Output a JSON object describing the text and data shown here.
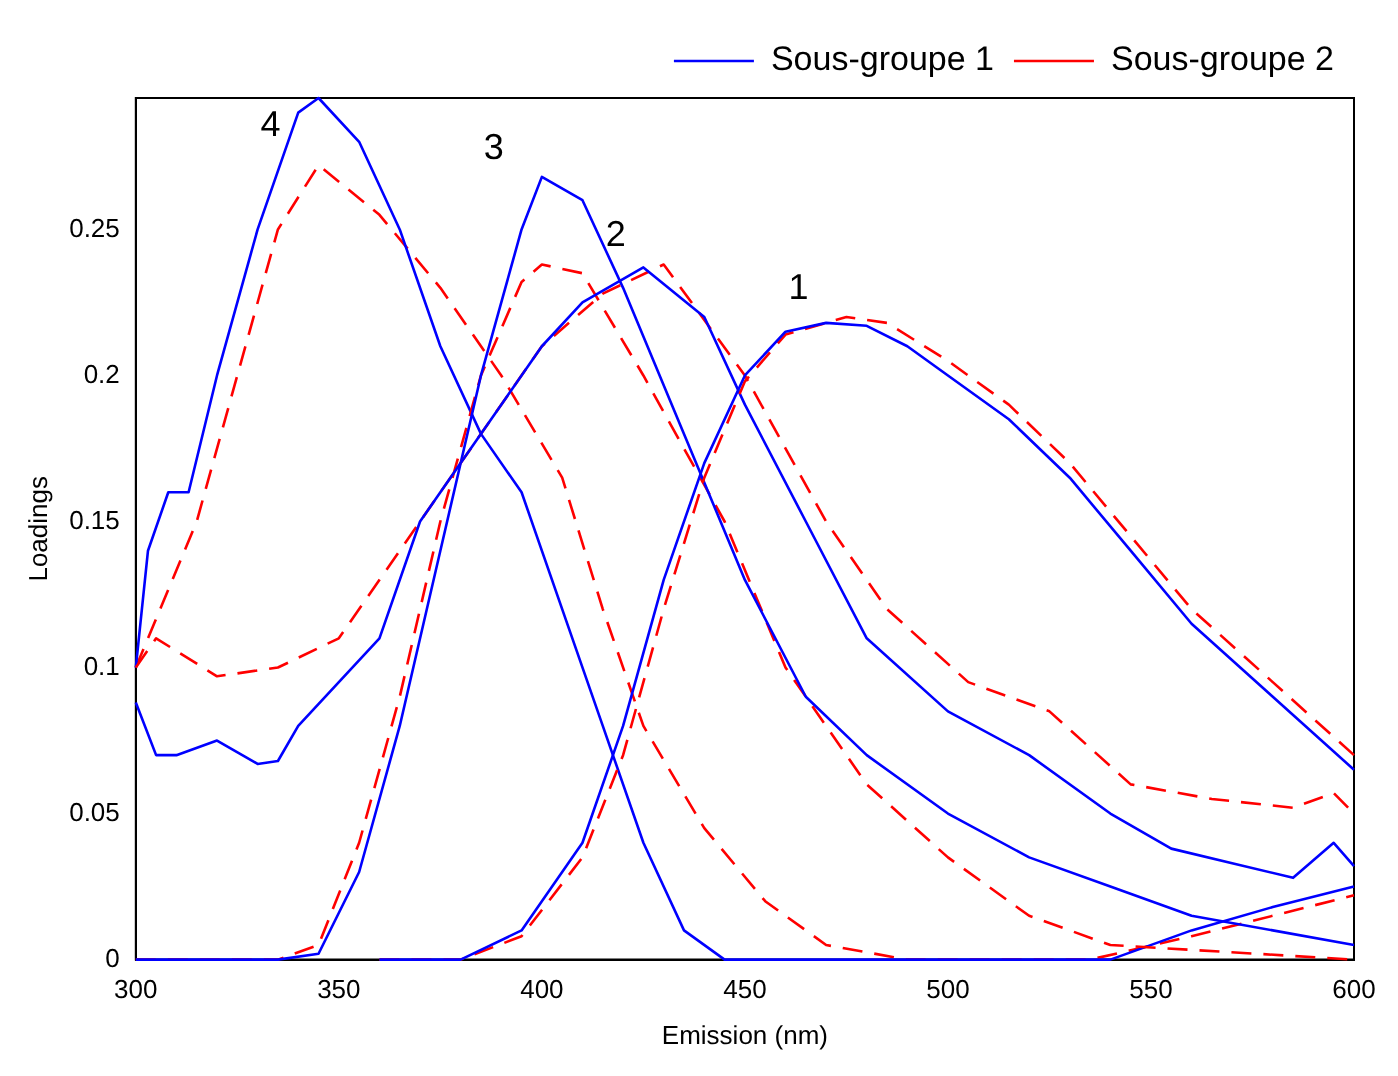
{
  "chart_data": {
    "type": "line",
    "xlabel": "Emission (nm)",
    "ylabel": "Loadings",
    "xlim": [
      300,
      600
    ],
    "xticks": [
      300,
      350,
      400,
      450,
      500,
      550,
      600
    ],
    "ylim": [
      0,
      0.295
    ],
    "yticks": [
      0,
      0.05,
      0.1,
      0.15,
      0.2,
      0.25
    ],
    "grid": false,
    "legend": "top right",
    "annotations": [
      {
        "text": "4",
        "x": 345,
        "y": 0.295
      },
      {
        "text": "3",
        "x": 400,
        "y": 0.268
      },
      {
        "text": "2",
        "x": 430,
        "y": 0.238
      },
      {
        "text": "1",
        "x": 475,
        "y": 0.22
      }
    ],
    "series": [
      {
        "name": "Sous-groupe 1",
        "color": "#0000ff",
        "line_style": "solid",
        "x": [
          360,
          380,
          395,
          410,
          420,
          430,
          440,
          450,
          460,
          470,
          480,
          490,
          500,
          515,
          530,
          545,
          560,
          580,
          600
        ],
        "values": [
          0,
          0,
          0.01,
          0.04,
          0.08,
          0.13,
          0.17,
          0.2,
          0.215,
          0.218,
          0.217,
          0.21,
          0.2,
          0.185,
          0.165,
          0.14,
          0.115,
          0.09,
          0.065
        ]
      },
      {
        "name": "Sous-groupe 2",
        "color": "#ff0000",
        "line_style": "dashed",
        "x": [
          360,
          380,
          395,
          410,
          420,
          430,
          440,
          450,
          460,
          475,
          485,
          500,
          515,
          530,
          545,
          560,
          580,
          600
        ],
        "values": [
          0,
          0,
          0.008,
          0.035,
          0.07,
          0.12,
          0.165,
          0.198,
          0.214,
          0.22,
          0.218,
          0.205,
          0.19,
          0.17,
          0.145,
          0.12,
          0.095,
          0.07
        ]
      },
      {
        "color": "#0000ff",
        "line_style": "solid",
        "x": [
          300,
          305,
          310,
          320,
          330,
          335,
          340,
          350,
          360,
          370,
          380,
          390,
          400,
          410,
          425,
          440,
          450,
          465,
          480,
          500,
          520,
          540,
          555,
          570,
          585,
          595,
          600
        ],
        "values": [
          0.088,
          0.07,
          0.07,
          0.075,
          0.067,
          0.068,
          0.08,
          0.095,
          0.11,
          0.15,
          0.17,
          0.19,
          0.21,
          0.225,
          0.237,
          0.22,
          0.19,
          0.15,
          0.11,
          0.085,
          0.07,
          0.05,
          0.038,
          0.033,
          0.028,
          0.04,
          0.032
        ]
      },
      {
        "color": "#ff0000",
        "line_style": "dashed",
        "x": [
          300,
          305,
          320,
          335,
          350,
          365,
          380,
          400,
          415,
          430,
          450,
          470,
          485,
          505,
          525,
          545,
          565,
          585,
          595,
          600
        ],
        "values": [
          0.1,
          0.11,
          0.097,
          0.1,
          0.11,
          0.14,
          0.17,
          0.21,
          0.228,
          0.238,
          0.2,
          0.15,
          0.12,
          0.095,
          0.085,
          0.06,
          0.055,
          0.052,
          0.057,
          0.05
        ]
      },
      {
        "color": "#0000ff",
        "line_style": "solid",
        "x": [
          300,
          335,
          345,
          355,
          365,
          375,
          385,
          395,
          400,
          410,
          420,
          435,
          450,
          465,
          480,
          500,
          520,
          540,
          560,
          580,
          600
        ],
        "values": [
          0,
          0,
          0.002,
          0.03,
          0.08,
          0.14,
          0.2,
          0.25,
          0.268,
          0.26,
          0.23,
          0.18,
          0.13,
          0.09,
          0.07,
          0.05,
          0.035,
          0.025,
          0.015,
          0.01,
          0.005
        ]
      },
      {
        "color": "#ff0000",
        "line_style": "dashed",
        "x": [
          300,
          335,
          345,
          355,
          365,
          375,
          385,
          395,
          400,
          410,
          425,
          445,
          460,
          480,
          500,
          520,
          540,
          600
        ],
        "values": [
          0,
          0,
          0.005,
          0.04,
          0.09,
          0.15,
          0.2,
          0.232,
          0.238,
          0.235,
          0.2,
          0.15,
          0.1,
          0.06,
          0.035,
          0.015,
          0.005,
          0
        ]
      },
      {
        "color": "#0000ff",
        "line_style": "solid",
        "x": [
          300,
          303,
          308,
          313,
          320,
          330,
          340,
          345,
          355,
          365,
          375,
          385,
          395,
          405,
          415,
          425,
          435,
          445,
          540,
          560,
          580,
          600
        ],
        "values": [
          0.1,
          0.14,
          0.16,
          0.16,
          0.2,
          0.25,
          0.29,
          0.295,
          0.28,
          0.25,
          0.21,
          0.18,
          0.16,
          0.12,
          0.08,
          0.04,
          0.01,
          0,
          0,
          0.01,
          0.018,
          0.025
        ]
      },
      {
        "color": "#ff0000",
        "line_style": "dashed",
        "x": [
          300,
          315,
          325,
          335,
          345,
          360,
          375,
          390,
          405,
          415,
          425,
          440,
          455,
          470,
          490,
          535,
          560,
          580,
          600
        ],
        "values": [
          0.1,
          0.15,
          0.2,
          0.25,
          0.272,
          0.255,
          0.23,
          0.2,
          0.165,
          0.12,
          0.08,
          0.045,
          0.02,
          0.005,
          0,
          0,
          0.008,
          0.015,
          0.022
        ]
      }
    ]
  }
}
